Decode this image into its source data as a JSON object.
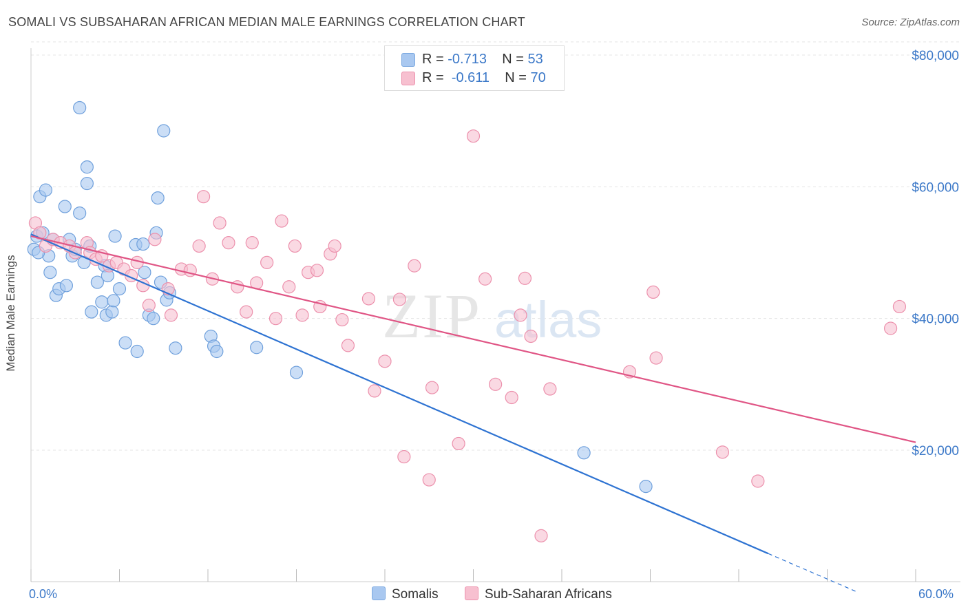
{
  "title": "SOMALI VS SUBSAHARAN AFRICAN MEDIAN MALE EARNINGS CORRELATION CHART",
  "source": "Source: ZipAtlas.com",
  "legend_stats": [
    {
      "r_label": "R =",
      "r_value": "-0.713",
      "n_label": "N =",
      "n_value": "53",
      "color": "#a9c8f0",
      "border": "#7aa8e0"
    },
    {
      "r_label": "R =",
      "r_value": "-0.611",
      "n_label": "N =",
      "n_value": "70",
      "color": "#f7c0d0",
      "border": "#ec90ac"
    }
  ],
  "legend_bottom": [
    {
      "label": "Somalis",
      "color": "#a9c8f0",
      "border": "#7aa8e0"
    },
    {
      "label": "Sub-Saharan Africans",
      "color": "#f7c0d0",
      "border": "#ec90ac"
    }
  ],
  "x_tick_labels": {
    "left": "0.0%",
    "right": "60.0%"
  },
  "chart_data": {
    "type": "scatter",
    "title": "SOMALI VS SUBSAHARAN AFRICAN MEDIAN MALE EARNINGS CORRELATION CHART",
    "xlabel": "",
    "ylabel": "Median Male Earnings",
    "xlim": [
      0,
      60
    ],
    "ylim": [
      0,
      82000
    ],
    "y_ticks": [
      20000,
      40000,
      60000,
      80000
    ],
    "y_tick_labels": [
      "$20,000",
      "$40,000",
      "$60,000",
      "$80,000"
    ],
    "grid": true,
    "watermark": "ZIPatlas",
    "series": [
      {
        "name": "Somalis",
        "color": "#a9c8f0",
        "stroke": "#6fa0dc",
        "line_color": "#2e73d2",
        "points": [
          [
            0.2,
            50500
          ],
          [
            0.4,
            52500
          ],
          [
            0.6,
            58500
          ],
          [
            0.8,
            53000
          ],
          [
            1.0,
            59500
          ],
          [
            1.2,
            49500
          ],
          [
            1.5,
            52000
          ],
          [
            1.7,
            43500
          ],
          [
            1.9,
            44500
          ],
          [
            2.3,
            57000
          ],
          [
            2.4,
            45000
          ],
          [
            2.8,
            49500
          ],
          [
            3.0,
            50500
          ],
          [
            3.3,
            56000
          ],
          [
            3.3,
            72000
          ],
          [
            3.6,
            48500
          ],
          [
            3.8,
            63000
          ],
          [
            3.8,
            60500
          ],
          [
            4.0,
            51000
          ],
          [
            4.1,
            41000
          ],
          [
            4.5,
            45500
          ],
          [
            4.8,
            42500
          ],
          [
            5.0,
            48000
          ],
          [
            5.1,
            40500
          ],
          [
            5.2,
            46500
          ],
          [
            5.5,
            41000
          ],
          [
            5.6,
            42700
          ],
          [
            5.7,
            52500
          ],
          [
            6.0,
            44500
          ],
          [
            6.4,
            36300
          ],
          [
            7.1,
            51200
          ],
          [
            7.2,
            35000
          ],
          [
            7.6,
            51300
          ],
          [
            7.7,
            47000
          ],
          [
            8.0,
            40500
          ],
          [
            8.3,
            40000
          ],
          [
            8.5,
            53000
          ],
          [
            8.6,
            58300
          ],
          [
            8.8,
            45500
          ],
          [
            9.0,
            68500
          ],
          [
            9.2,
            42800
          ],
          [
            9.4,
            43900
          ],
          [
            9.8,
            35500
          ],
          [
            12.2,
            37300
          ],
          [
            12.4,
            35800
          ],
          [
            12.6,
            35000
          ],
          [
            15.3,
            35600
          ],
          [
            18.0,
            31800
          ],
          [
            37.5,
            19600
          ],
          [
            41.7,
            14500
          ],
          [
            0.5,
            50000
          ],
          [
            1.3,
            47000
          ],
          [
            2.6,
            52000
          ]
        ],
        "trend": {
          "x0": 0,
          "y0": 52800,
          "x1": 50,
          "y1": 4300,
          "dash_x1": 56,
          "dash_y1": -1500
        }
      },
      {
        "name": "Sub-Saharan Africans",
        "color": "#f7c0d0",
        "stroke": "#ec90ac",
        "line_color": "#e05585",
        "points": [
          [
            0.3,
            54500
          ],
          [
            0.6,
            53000
          ],
          [
            1.0,
            51000
          ],
          [
            1.5,
            52000
          ],
          [
            2.0,
            51500
          ],
          [
            2.6,
            51000
          ],
          [
            3.0,
            50000
          ],
          [
            3.8,
            51500
          ],
          [
            4.0,
            50000
          ],
          [
            4.4,
            49000
          ],
          [
            4.8,
            49500
          ],
          [
            5.3,
            48000
          ],
          [
            5.8,
            48500
          ],
          [
            6.3,
            47500
          ],
          [
            6.8,
            46500
          ],
          [
            7.2,
            48500
          ],
          [
            7.6,
            45000
          ],
          [
            8.0,
            42000
          ],
          [
            8.4,
            52000
          ],
          [
            9.3,
            44500
          ],
          [
            9.5,
            40500
          ],
          [
            10.2,
            47500
          ],
          [
            10.8,
            47300
          ],
          [
            11.4,
            51000
          ],
          [
            11.7,
            58500
          ],
          [
            12.3,
            46000
          ],
          [
            12.8,
            54500
          ],
          [
            13.4,
            51500
          ],
          [
            14.0,
            44800
          ],
          [
            14.6,
            41000
          ],
          [
            15.0,
            51500
          ],
          [
            15.3,
            45400
          ],
          [
            16.0,
            48500
          ],
          [
            16.6,
            40000
          ],
          [
            17.0,
            54800
          ],
          [
            17.5,
            44800
          ],
          [
            17.9,
            51000
          ],
          [
            18.4,
            40500
          ],
          [
            18.8,
            47000
          ],
          [
            19.4,
            47300
          ],
          [
            19.6,
            41800
          ],
          [
            20.3,
            49800
          ],
          [
            20.6,
            51000
          ],
          [
            21.1,
            39800
          ],
          [
            21.5,
            35900
          ],
          [
            22.9,
            43000
          ],
          [
            23.3,
            29000
          ],
          [
            24.0,
            33500
          ],
          [
            25.0,
            42900
          ],
          [
            25.3,
            19000
          ],
          [
            26.0,
            48000
          ],
          [
            27.0,
            15500
          ],
          [
            27.2,
            29500
          ],
          [
            29.0,
            21000
          ],
          [
            30.0,
            67700
          ],
          [
            30.8,
            46000
          ],
          [
            31.5,
            30000
          ],
          [
            32.6,
            28000
          ],
          [
            33.2,
            40500
          ],
          [
            33.5,
            46100
          ],
          [
            33.9,
            37300
          ],
          [
            34.6,
            7000
          ],
          [
            35.2,
            29300
          ],
          [
            40.6,
            31900
          ],
          [
            42.2,
            44000
          ],
          [
            42.4,
            34000
          ],
          [
            46.9,
            19700
          ],
          [
            49.3,
            15300
          ],
          [
            58.3,
            38500
          ],
          [
            58.9,
            41800
          ]
        ],
        "trend": {
          "x0": 0,
          "y0": 52500,
          "x1": 60,
          "y1": 21200
        }
      }
    ]
  }
}
